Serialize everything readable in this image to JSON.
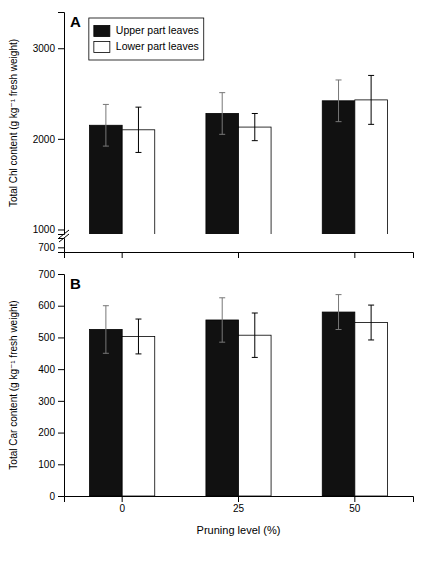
{
  "chart_data": [
    {
      "type": "bar",
      "ylabel": "Total Chl content (g kg⁻¹ fresh weight)",
      "categories": [
        0,
        25,
        50
      ],
      "series": [
        {
          "name": "Upper part leaves",
          "color": "#111111",
          "values": [
            2150,
            2280,
            2420
          ],
          "errors": [
            230,
            230,
            230
          ]
        },
        {
          "name": "Lower part leaves",
          "color": "#ffffff",
          "values": [
            2100,
            2130,
            2430
          ],
          "errors": [
            250,
            150,
            270
          ]
        }
      ],
      "ylim": [
        950,
        3400
      ],
      "yticks": [
        1000,
        2000,
        3000
      ],
      "legend": "upper left",
      "annotation": "A",
      "tick_labels": "y"
    },
    {
      "type": "bar",
      "categories": [
        0,
        25,
        50
      ],
      "ylim": [
        695,
        710
      ],
      "yticks": [
        700
      ],
      "tick_labels": "y"
    },
    {
      "type": "bar",
      "xlabel": "Pruning level (%)",
      "ylabel": "Total Car content (g kg⁻¹ fresh weight)",
      "categories": [
        0,
        25,
        50
      ],
      "series": [
        {
          "color": "#111111",
          "values": [
            525,
            555,
            580
          ],
          "errors": [
            75,
            70,
            55
          ]
        },
        {
          "color": "#ffffff",
          "values": [
            503,
            507,
            547
          ],
          "errors": [
            55,
            70,
            55
          ]
        }
      ],
      "ylim": [
        0,
        700
      ],
      "yticks": [
        0,
        100,
        200,
        300,
        400,
        500,
        600,
        700
      ],
      "annotation": "B"
    }
  ]
}
